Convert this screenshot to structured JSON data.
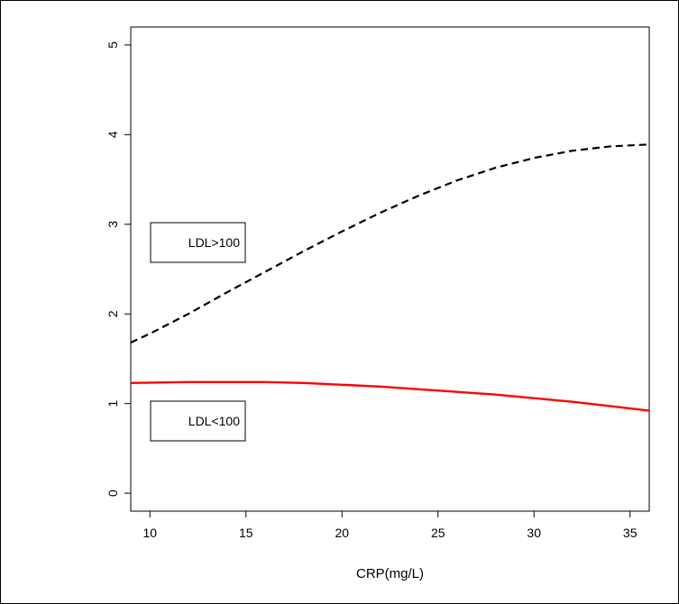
{
  "chart_data": {
    "type": "line",
    "title": "",
    "xlabel": "CRP(mg/L)",
    "ylabel": "",
    "xlim": [
      9,
      36
    ],
    "ylim": [
      -0.2,
      5.2
    ],
    "x_ticks": [
      10,
      15,
      20,
      25,
      30,
      35
    ],
    "y_ticks": [
      0,
      1,
      2,
      3,
      4,
      5
    ],
    "grid": false,
    "series": [
      {
        "name": "LDL>100",
        "color": "#000000",
        "line_style": "dashed",
        "x": [
          9,
          10,
          12,
          14,
          16,
          18,
          20,
          22,
          24,
          26,
          28,
          30,
          32,
          34,
          36
        ],
        "y": [
          1.68,
          1.78,
          2.0,
          2.24,
          2.47,
          2.7,
          2.92,
          3.13,
          3.32,
          3.49,
          3.63,
          3.74,
          3.82,
          3.87,
          3.89
        ]
      },
      {
        "name": "LDL<100",
        "color": "#ff0000",
        "line_style": "solid",
        "x": [
          9,
          12,
          14,
          16,
          18,
          20,
          22,
          24,
          26,
          28,
          30,
          32,
          34,
          36
        ],
        "y": [
          1.23,
          1.24,
          1.24,
          1.24,
          1.23,
          1.21,
          1.19,
          1.16,
          1.13,
          1.1,
          1.06,
          1.02,
          0.97,
          0.92
        ]
      }
    ],
    "legend_boxes": [
      {
        "label": "LDL>100"
      },
      {
        "label": "LDL<100"
      }
    ]
  }
}
